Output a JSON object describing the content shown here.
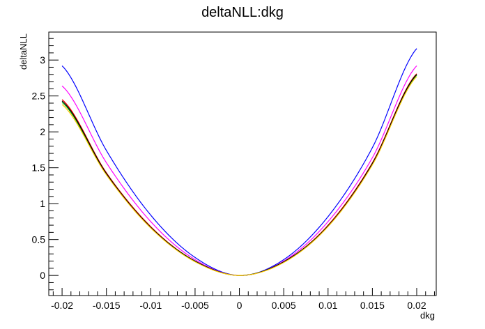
{
  "chart_data": {
    "type": "line",
    "title": "deltaNLL:dkg",
    "xlabel": "dkg",
    "ylabel": "deltaNLL",
    "xlim": [
      -0.0215,
      0.0222
    ],
    "ylim": [
      -0.28,
      3.39
    ],
    "grid": false,
    "x_ticks": [
      -0.02,
      -0.015,
      -0.01,
      -0.005,
      0,
      0.005,
      0.01,
      0.015,
      0.02
    ],
    "x_tick_labels": [
      "-0.02",
      "-0.015",
      "-0.01",
      "-0.005",
      "0",
      "0.005",
      "0.01",
      "0.015",
      "0.02"
    ],
    "y_ticks": [
      0,
      0.5,
      1,
      1.5,
      2,
      2.5,
      3
    ],
    "y_tick_labels": [
      "0",
      "0.5",
      "1",
      "1.5",
      "2",
      "2.5",
      "3"
    ],
    "x": [
      -0.02,
      -0.015,
      -0.01,
      -0.005,
      0,
      0.005,
      0.01,
      0.015,
      0.02
    ],
    "series": [
      {
        "color": "#0000ff",
        "values": [
          2.92,
          1.74,
          0.84,
          0.25,
          0,
          0.22,
          0.82,
          1.78,
          3.16
        ]
      },
      {
        "color": "#ff00ff",
        "values": [
          2.64,
          1.57,
          0.75,
          0.22,
          0,
          0.2,
          0.75,
          1.64,
          2.92
        ]
      },
      {
        "color": "#ff0000",
        "values": [
          2.45,
          1.43,
          0.68,
          0.2,
          0,
          0.19,
          0.7,
          1.57,
          2.81
        ]
      },
      {
        "color": "#00aa00",
        "values": [
          2.41,
          1.41,
          0.67,
          0.2,
          0,
          0.19,
          0.69,
          1.55,
          2.79
        ]
      },
      {
        "color": "#000000",
        "values": [
          2.43,
          1.42,
          0.67,
          0.2,
          0,
          0.19,
          0.69,
          1.56,
          2.8
        ]
      },
      {
        "color": "#ffcc00",
        "values": [
          2.38,
          1.4,
          0.66,
          0.19,
          0,
          0.18,
          0.68,
          1.54,
          2.77
        ]
      }
    ]
  }
}
